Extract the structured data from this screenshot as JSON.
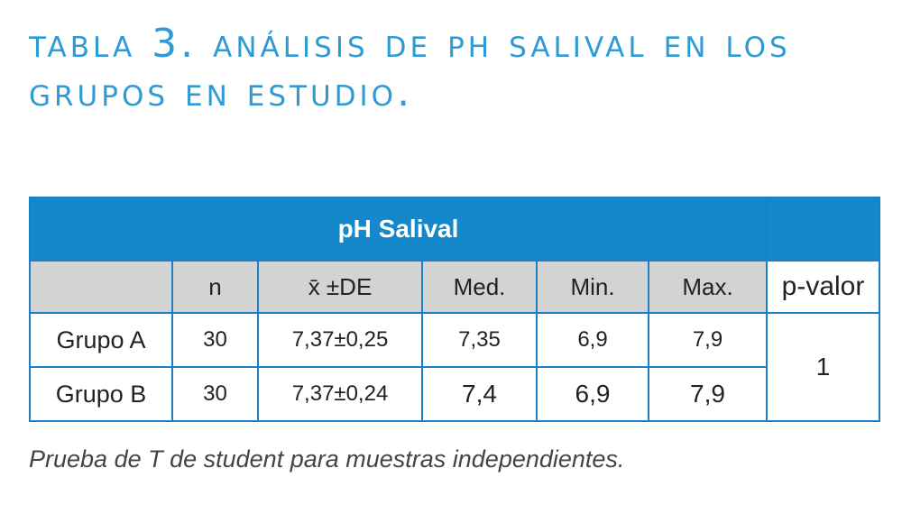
{
  "title": "Tabla 3.  Análisis de pH salival en los grupos en estudio.",
  "table": {
    "header": "pH Salival",
    "columns": [
      "",
      "n",
      "x̄ ±DE",
      "Med.",
      "Min.",
      "Max.",
      "p-valor"
    ],
    "rows": [
      {
        "group": "Grupo A",
        "n": "30",
        "mean_sd": "7,37±0,25",
        "med": "7,35",
        "min": "6,9",
        "max": "7,9"
      },
      {
        "group": "Grupo B",
        "n": "30",
        "mean_sd": "7,37±0,24",
        "med": "7,4",
        "min": "6,9",
        "max": "7,9"
      }
    ],
    "p_value": "1"
  },
  "note": "Prueba de T de student para muestras independientes.",
  "colors": {
    "accent": "#1588cc",
    "title": "#2f9ad3",
    "header_gray": "#d3d3d3"
  }
}
